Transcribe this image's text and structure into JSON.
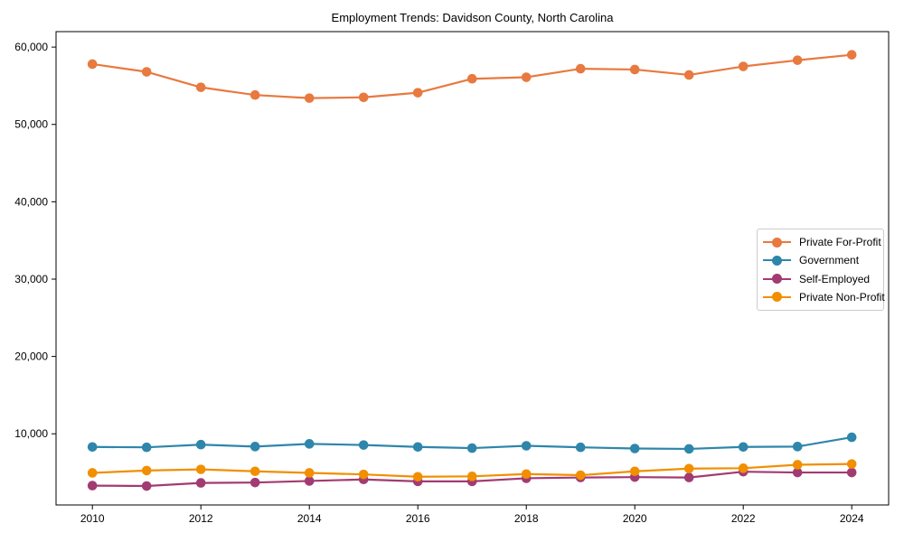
{
  "title": "Employment Trends: Davidson County, North Carolina",
  "chart_data": {
    "type": "line",
    "title": "Employment Trends: Davidson County, North Carolina",
    "xlabel": "",
    "ylabel": "",
    "grid": false,
    "legend_position": "center-right",
    "xlim": [
      2009.33,
      2024.68
    ],
    "ylim": [
      800,
      62000
    ],
    "x": [
      2010,
      2011,
      2012,
      2013,
      2014,
      2015,
      2016,
      2017,
      2018,
      2019,
      2020,
      2021,
      2022,
      2023,
      2024
    ],
    "x_ticks": [
      2010,
      2012,
      2014,
      2016,
      2018,
      2020,
      2022,
      2024
    ],
    "x_tick_labels": [
      "2010",
      "2012",
      "2014",
      "2016",
      "2018",
      "2020",
      "2022",
      "2024"
    ],
    "y_ticks": [
      10000,
      20000,
      30000,
      40000,
      50000,
      60000
    ],
    "y_tick_labels": [
      "10,000",
      "20,000",
      "30,000",
      "40,000",
      "50,000",
      "60,000"
    ],
    "series": [
      {
        "name": "Private For-Profit",
        "slug": "private-for-profit",
        "color": "#E8793F",
        "values": [
          57800,
          56800,
          54800,
          53800,
          53400,
          53500,
          54100,
          55900,
          56100,
          57200,
          57100,
          56400,
          57500,
          58300,
          59000
        ]
      },
      {
        "name": "Government",
        "slug": "government",
        "color": "#2E86AB",
        "values": [
          8300,
          8250,
          8600,
          8350,
          8700,
          8550,
          8300,
          8150,
          8450,
          8250,
          8100,
          8050,
          8300,
          8350,
          9550
        ]
      },
      {
        "name": "Self-Employed",
        "slug": "self-employed",
        "color": "#A23B72",
        "values": [
          3300,
          3250,
          3650,
          3700,
          3900,
          4100,
          3850,
          3850,
          4250,
          4350,
          4400,
          4350,
          5100,
          5000,
          5000
        ]
      },
      {
        "name": "Private Non-Profit",
        "slug": "private-non-profit",
        "color": "#F18F01",
        "values": [
          4950,
          5250,
          5400,
          5150,
          4950,
          4750,
          4450,
          4500,
          4800,
          4650,
          5150,
          5500,
          5550,
          6000,
          6100
        ]
      }
    ]
  }
}
